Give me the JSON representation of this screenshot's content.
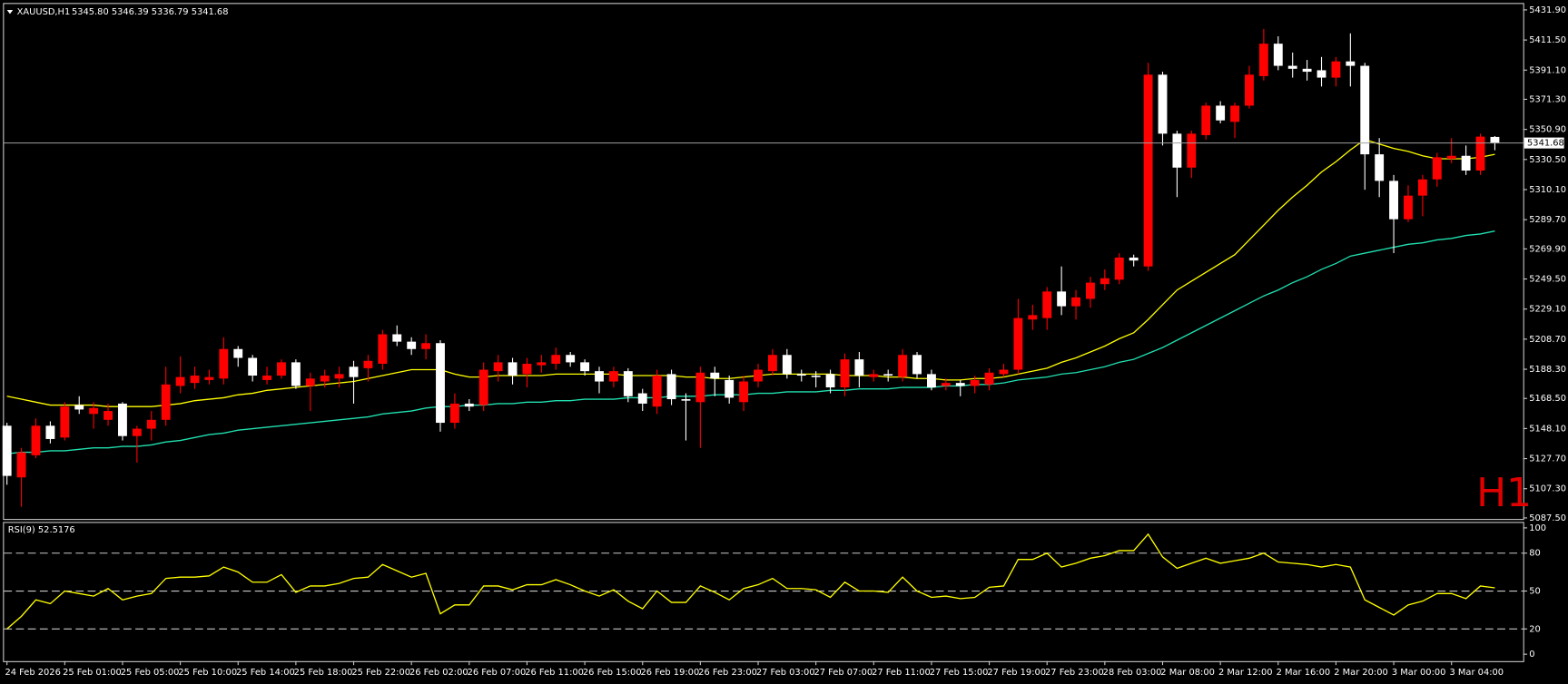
{
  "chart_data": [
    {
      "type": "candlestick",
      "title": "XAUUSD,H1",
      "subtitle": "5345.80 5346.39 5336.79 5341.68",
      "annotation": "H1",
      "up_color": "#ff0000",
      "down_color": "#ffffff",
      "current_price": 5341.68,
      "ylim": [
        5086.8,
        5436.6
      ],
      "yticks": [
        {
          "value": 5431.9,
          "label": "5431.90"
        },
        {
          "value": 5411.5,
          "label": "5411.50"
        },
        {
          "value": 5391.1,
          "label": "5391.10"
        },
        {
          "value": 5371.3,
          "label": "5371.30"
        },
        {
          "value": 5350.9,
          "label": "5350.90"
        },
        {
          "value": 5330.5,
          "label": "5330.50"
        },
        {
          "value": 5310.1,
          "label": "5310.10"
        },
        {
          "value": 5289.7,
          "label": "5289.70"
        },
        {
          "value": 5269.9,
          "label": "5269.90"
        },
        {
          "value": 5249.5,
          "label": "5249.50"
        },
        {
          "value": 5229.1,
          "label": "5229.10"
        },
        {
          "value": 5208.7,
          "label": "5208.70"
        },
        {
          "value": 5188.3,
          "label": "5188.30"
        },
        {
          "value": 5168.5,
          "label": "5168.50"
        },
        {
          "value": 5148.1,
          "label": "5148.10"
        },
        {
          "value": 5127.7,
          "label": "5127.70"
        },
        {
          "value": 5107.3,
          "label": "5107.30"
        },
        {
          "value": 5087.5,
          "label": "5087.50"
        }
      ],
      "categories": [
        "24 Feb 2026",
        null,
        null,
        null,
        "25 Feb 01:00",
        null,
        null,
        null,
        "25 Feb 05:00",
        null,
        null,
        null,
        "25 Feb 10:00",
        null,
        null,
        null,
        "25 Feb 14:00",
        null,
        null,
        null,
        "25 Feb 18:00",
        null,
        null,
        null,
        "25 Feb 22:00",
        null,
        null,
        null,
        "26 Feb 02:00",
        null,
        null,
        null,
        "26 Feb 07:00",
        null,
        null,
        null,
        "26 Feb 11:00",
        null,
        null,
        null,
        "26 Feb 15:00",
        null,
        null,
        null,
        "26 Feb 19:00",
        null,
        null,
        null,
        "26 Feb 23:00",
        null,
        null,
        null,
        "27 Feb 03:00",
        null,
        null,
        null,
        "27 Feb 07:00",
        null,
        null,
        null,
        "27 Feb 11:00",
        null,
        null,
        null,
        "27 Feb 15:00",
        null,
        null,
        null,
        "27 Feb 19:00",
        null,
        null,
        null,
        "27 Feb 23:00",
        null,
        null,
        null,
        "28 Feb 03:00",
        null,
        null,
        null,
        "2 Mar 08:00",
        null,
        null,
        null,
        "2 Mar 12:00",
        null,
        null,
        null,
        "2 Mar 16:00",
        null,
        null,
        null,
        "2 Mar 20:00",
        null,
        null,
        null,
        "3 Mar 00:00",
        null,
        null,
        null,
        "3 Mar 04:00",
        null,
        null,
        null
      ],
      "open": [
        5150,
        5115,
        5130,
        5150,
        5142,
        5164,
        5158,
        5154,
        5165,
        5143,
        5148,
        5154,
        5177,
        5179,
        5181,
        5182,
        5202,
        5196,
        5181,
        5184,
        5193,
        5177,
        5180,
        5182,
        5190,
        5189,
        5192,
        5212,
        5207,
        5202,
        5206,
        5152,
        5165,
        5164,
        5187,
        5193,
        5185,
        5191,
        5192,
        5198,
        5193,
        5187,
        5180,
        5187,
        5172,
        5163,
        5185,
        5168,
        5166,
        5186,
        5181,
        5166,
        5180,
        5187,
        5198,
        5185,
        5184,
        5185,
        5176,
        5195,
        5183,
        5185,
        5183,
        5198,
        5185,
        5177,
        5179,
        5177,
        5178,
        5185,
        5188,
        5222,
        5223,
        5241,
        5231,
        5236,
        5246,
        5249,
        5264,
        5258,
        5388,
        5348,
        5325,
        5347,
        5367,
        5356,
        5367,
        5387,
        5409,
        5394,
        5392,
        5391,
        5386,
        5397,
        5394,
        5334,
        5316,
        5290,
        5306,
        5317,
        5331,
        5333,
        5323,
        5345.8
      ],
      "high": [
        5152,
        5135,
        5155,
        5153,
        5166,
        5170,
        5166,
        5165,
        5166,
        5150,
        5160,
        5190,
        5197,
        5190,
        5188,
        5210,
        5204,
        5198,
        5190,
        5195,
        5195,
        5186,
        5188,
        5190,
        5194,
        5198,
        5215,
        5218,
        5210,
        5212,
        5208,
        5172,
        5168,
        5193,
        5198,
        5196,
        5196,
        5198,
        5203,
        5200,
        5195,
        5190,
        5190,
        5189,
        5175,
        5188,
        5188,
        5172,
        5190,
        5190,
        5184,
        5184,
        5192,
        5202,
        5202,
        5188,
        5187,
        5188,
        5199,
        5200,
        5188,
        5188,
        5202,
        5200,
        5188,
        5182,
        5181,
        5184,
        5189,
        5192,
        5236,
        5232,
        5244,
        5258,
        5242,
        5251,
        5256,
        5267,
        5266,
        5396,
        5390,
        5350,
        5350,
        5369,
        5370,
        5369,
        5394,
        5419,
        5414,
        5403,
        5398,
        5400,
        5400,
        5416,
        5396,
        5345,
        5320,
        5313,
        5320,
        5335,
        5345,
        5340,
        5348,
        5346.39
      ],
      "low": [
        5110,
        5095,
        5128,
        5138,
        5140,
        5158,
        5148,
        5150,
        5140,
        5125,
        5140,
        5150,
        5172,
        5175,
        5178,
        5178,
        5190,
        5180,
        5178,
        5182,
        5175,
        5160,
        5176,
        5176,
        5165,
        5180,
        5188,
        5204,
        5198,
        5195,
        5146,
        5148,
        5160,
        5160,
        5180,
        5178,
        5176,
        5186,
        5188,
        5190,
        5184,
        5172,
        5176,
        5166,
        5160,
        5158,
        5164,
        5140,
        5135,
        5170,
        5165,
        5160,
        5176,
        5184,
        5182,
        5180,
        5176,
        5172,
        5170,
        5176,
        5180,
        5180,
        5180,
        5182,
        5174,
        5174,
        5170,
        5172,
        5174,
        5183,
        5185,
        5215,
        5215,
        5225,
        5222,
        5230,
        5242,
        5246,
        5258,
        5255,
        5340,
        5305,
        5318,
        5344,
        5355,
        5345,
        5365,
        5384,
        5391,
        5386,
        5384,
        5380,
        5380,
        5380,
        5310,
        5305,
        5267,
        5288,
        5292,
        5312,
        5328,
        5320,
        5320,
        5336.79
      ],
      "close": [
        5116,
        5132,
        5150,
        5141,
        5163,
        5161,
        5162,
        5160,
        5143,
        5148,
        5154,
        5178,
        5183,
        5184,
        5183,
        5202,
        5196,
        5184,
        5184,
        5193,
        5177,
        5182,
        5184,
        5185,
        5183,
        5194,
        5212,
        5207,
        5202,
        5206,
        5152,
        5165,
        5163,
        5188,
        5193,
        5184,
        5192,
        5193,
        5198,
        5193,
        5187,
        5180,
        5187,
        5170,
        5165,
        5184,
        5168,
        5167,
        5186,
        5182,
        5169,
        5180,
        5188,
        5198,
        5185,
        5184,
        5183,
        5176,
        5195,
        5184,
        5185,
        5184,
        5198,
        5185,
        5176,
        5179,
        5177,
        5181,
        5186,
        5188,
        5223,
        5225,
        5241,
        5231,
        5237,
        5247,
        5250,
        5264,
        5262,
        5388,
        5348,
        5325,
        5348,
        5367,
        5357,
        5367,
        5388,
        5409,
        5394,
        5392,
        5390,
        5386,
        5397,
        5394,
        5334,
        5316,
        5290,
        5306,
        5317,
        5332,
        5333,
        5323,
        5346,
        5341.68
      ],
      "overlays": [
        {
          "color": "#ffff00",
          "values": [
            5170,
            5168,
            5166,
            5164,
            5164,
            5164,
            5164,
            5163,
            5163,
            5163,
            5163,
            5164,
            5165,
            5167,
            5168,
            5169,
            5171,
            5172,
            5174,
            5175,
            5176,
            5177,
            5178,
            5179,
            5180,
            5182,
            5184,
            5186,
            5188,
            5188,
            5188,
            5185,
            5183,
            5183,
            5184,
            5184,
            5184,
            5184,
            5185,
            5185,
            5185,
            5185,
            5185,
            5184,
            5184,
            5184,
            5184,
            5183,
            5183,
            5182,
            5182,
            5183,
            5184,
            5185,
            5185,
            5185,
            5185,
            5185,
            5184,
            5184,
            5184,
            5183,
            5183,
            5182,
            5182,
            5181,
            5181,
            5182,
            5182,
            5183,
            5185,
            5187,
            5189,
            5193,
            5196,
            5200,
            5204,
            5209,
            5213,
            5222,
            5232,
            5242,
            5248,
            5254,
            5260,
            5266,
            5276,
            5286,
            5296,
            5305,
            5313,
            5322,
            5329,
            5337,
            5344,
            5341,
            5338,
            5336,
            5333,
            5331,
            5331,
            5331,
            5332,
            5334
          ]
        },
        {
          "color": "#20e0b0",
          "values": [
            5131,
            5132,
            5132,
            5133,
            5133,
            5134,
            5135,
            5135,
            5136,
            5136,
            5137,
            5139,
            5140,
            5142,
            5144,
            5145,
            5147,
            5148,
            5149,
            5150,
            5151,
            5152,
            5153,
            5154,
            5155,
            5156,
            5158,
            5159,
            5160,
            5162,
            5163,
            5163,
            5164,
            5164,
            5165,
            5165,
            5166,
            5166,
            5167,
            5167,
            5168,
            5168,
            5168,
            5169,
            5169,
            5169,
            5170,
            5170,
            5170,
            5171,
            5171,
            5171,
            5172,
            5172,
            5173,
            5173,
            5173,
            5174,
            5174,
            5175,
            5175,
            5175,
            5176,
            5176,
            5176,
            5177,
            5177,
            5178,
            5178,
            5179,
            5181,
            5182,
            5183,
            5185,
            5186,
            5188,
            5190,
            5193,
            5195,
            5199,
            5203,
            5208,
            5213,
            5218,
            5223,
            5228,
            5233,
            5238,
            5242,
            5247,
            5251,
            5256,
            5260,
            5265,
            5267,
            5269,
            5271,
            5273,
            5274,
            5276,
            5277,
            5279,
            5280,
            5282
          ]
        }
      ]
    },
    {
      "type": "line",
      "title": "RSI(9) 52.5176",
      "color": "#ffff00",
      "ylim": [
        -5.5,
        104.7
      ],
      "yticks": [
        0,
        20,
        50,
        80,
        100
      ],
      "levels": [
        20,
        50,
        80
      ],
      "values": [
        20,
        30,
        43,
        40,
        50,
        48,
        46,
        52,
        43,
        46,
        48,
        60,
        61,
        61,
        62,
        69,
        65,
        57,
        57,
        63,
        49,
        54,
        54,
        56,
        60,
        61,
        71,
        66,
        61,
        64,
        32,
        39,
        39,
        54,
        54,
        51,
        55,
        55,
        59,
        55,
        50,
        46,
        51,
        42,
        36,
        50,
        41,
        41,
        54,
        49,
        43,
        52,
        55,
        60,
        52,
        52,
        51,
        45,
        57,
        50,
        50,
        49,
        61,
        50,
        45,
        46,
        44,
        45,
        53,
        54,
        75,
        75,
        80,
        69,
        72,
        76,
        78,
        82,
        82,
        95,
        77,
        68,
        72,
        76,
        72,
        74,
        76,
        80,
        73,
        72,
        71,
        69,
        71,
        69,
        43,
        37,
        31,
        39,
        42,
        48,
        48,
        44,
        54,
        52.5176
      ]
    }
  ]
}
